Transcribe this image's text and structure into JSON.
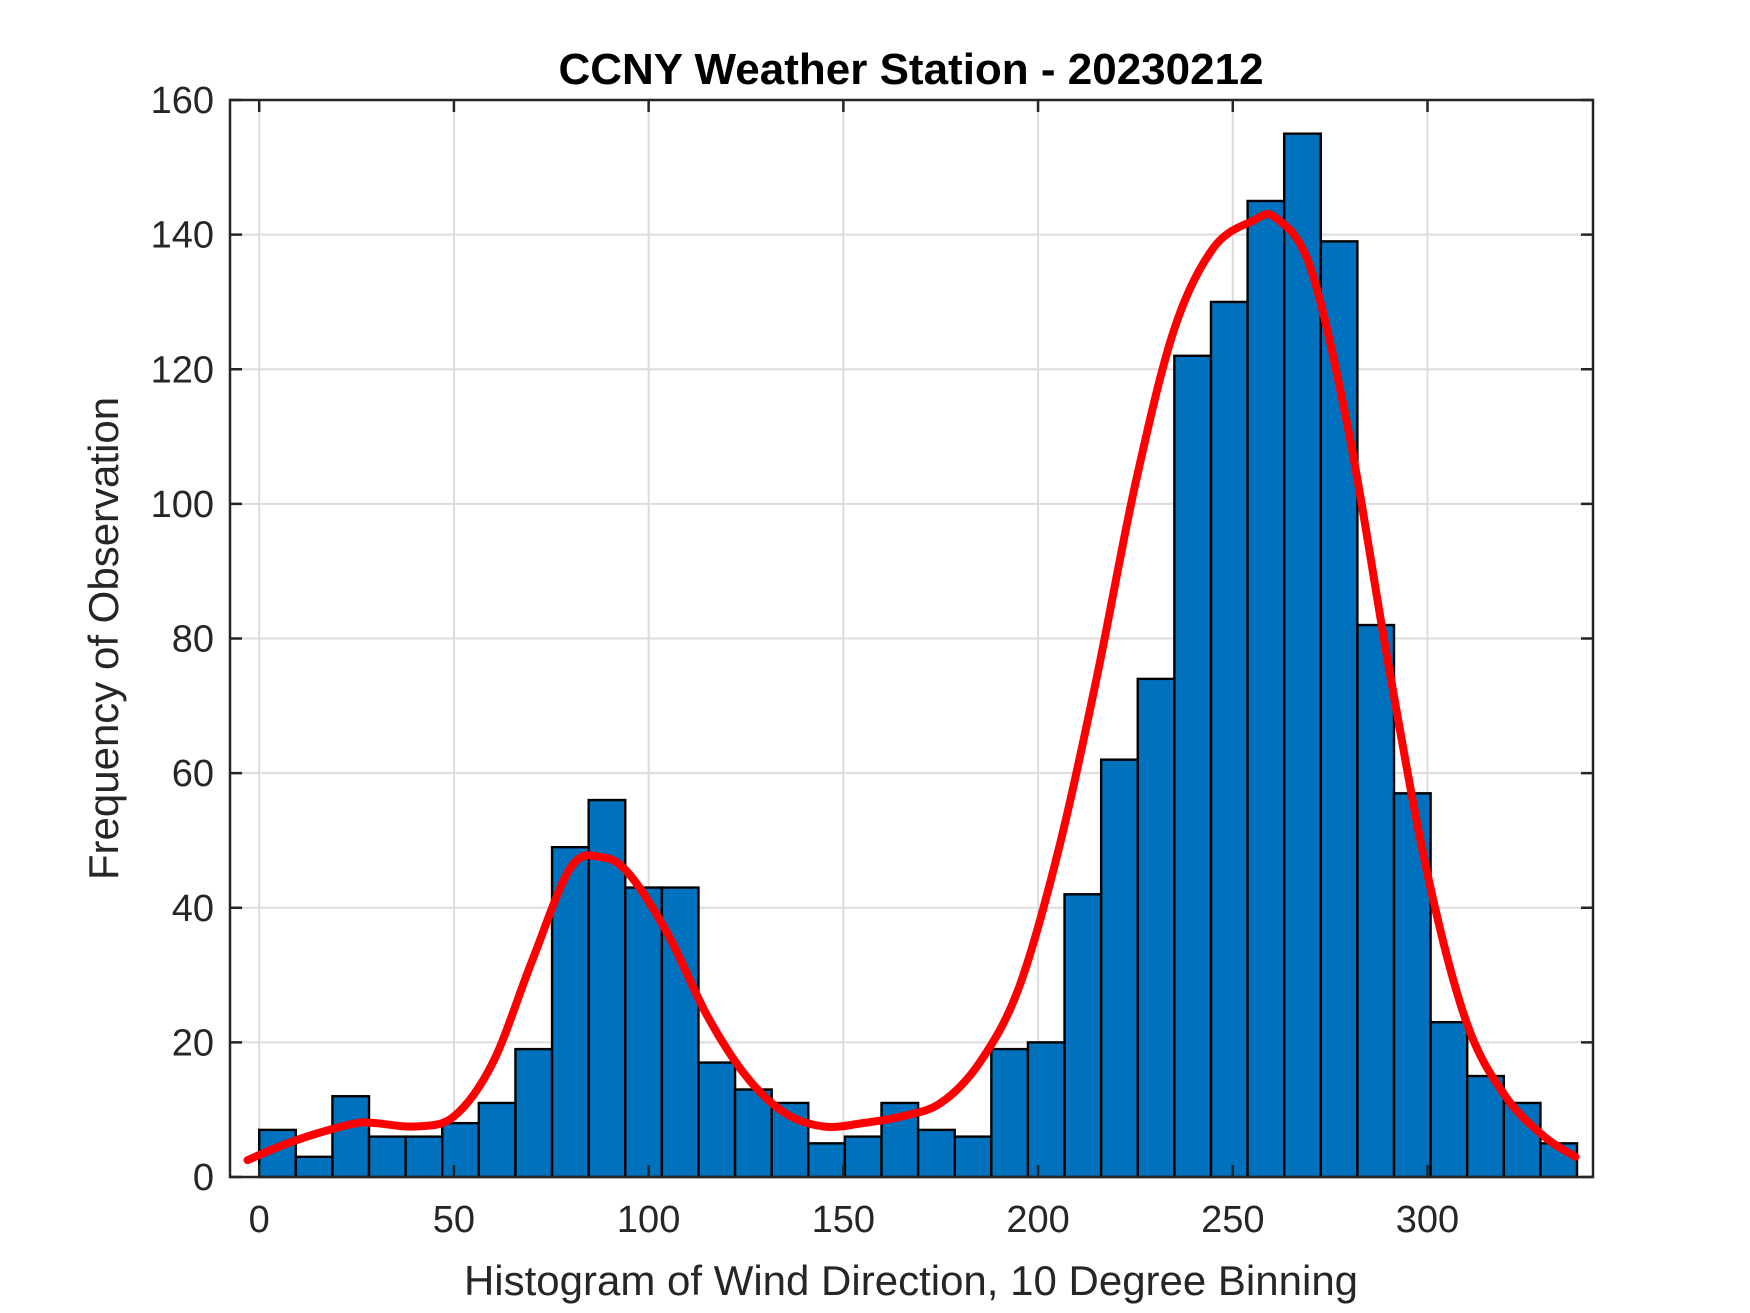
{
  "chart_data": {
    "type": "bar",
    "title": "CCNY Weather Station - 20230212",
    "xlabel": "Histogram of Wind Direction, 10 Degree Binning",
    "ylabel": "Frequency of Observation",
    "xlim": [
      -7.5,
      342.5
    ],
    "ylim": [
      0,
      160
    ],
    "xticks": [
      0,
      50,
      100,
      150,
      200,
      250,
      300
    ],
    "yticks": [
      0,
      20,
      40,
      60,
      80,
      100,
      120,
      140,
      160
    ],
    "grid": true,
    "bin_width": 9.4,
    "bin_starts": [
      0,
      9.4,
      18.8,
      28.2,
      37.6,
      47.0,
      56.4,
      65.8,
      75.2,
      84.6,
      94.0,
      103.4,
      112.8,
      122.2,
      131.6,
      141.0,
      150.4,
      159.8,
      169.2,
      178.6,
      188.0,
      197.4,
      206.8,
      216.2,
      225.6,
      235.0,
      244.4,
      253.8,
      263.2,
      272.6,
      282.0,
      291.4,
      300.8,
      310.2,
      319.6,
      329.0
    ],
    "values": [
      7,
      3,
      12,
      6,
      6,
      8,
      11,
      19,
      49,
      56,
      43,
      43,
      17,
      13,
      11,
      5,
      6,
      11,
      7,
      6,
      19,
      20,
      42,
      62,
      74,
      122,
      130,
      145,
      155,
      139,
      82,
      57,
      23,
      15,
      11,
      5
    ],
    "bar_color": "#0072bd",
    "bar_edge_color": "#000000",
    "fit": {
      "type": "line",
      "color": "#ff0000",
      "x": [
        -3,
        5,
        15,
        25,
        30,
        40,
        50,
        60,
        70,
        80,
        88,
        95,
        105,
        115,
        125,
        135,
        145,
        155,
        165,
        175,
        185,
        195,
        205,
        215,
        225,
        235,
        245,
        255,
        261,
        270,
        280,
        290,
        300,
        310,
        320,
        330,
        338
      ],
      "y": [
        2.5,
        4.5,
        6.5,
        8,
        8,
        7.5,
        9,
        17,
        32,
        46,
        47.5,
        45,
        36,
        24,
        15,
        9.5,
        7.5,
        8,
        9,
        11,
        17,
        28,
        48,
        74,
        103,
        126,
        138,
        142,
        142.5,
        135,
        110,
        76,
        45,
        23,
        12,
        6,
        3
      ]
    }
  }
}
